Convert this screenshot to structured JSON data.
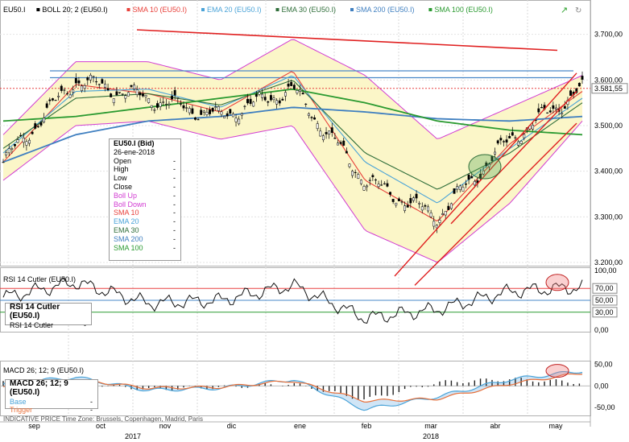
{
  "legend": [
    {
      "label": "EU50.I",
      "color": "#000000"
    },
    {
      "label": "BOLL 20; 2 (EU50.I)",
      "color": "#000000"
    },
    {
      "label": "SMA 10 (EU50.I)",
      "color": "#e8403a"
    },
    {
      "label": "EMA 20 (EU50.I)",
      "color": "#4aa3d8"
    },
    {
      "label": "EMA 30 (EU50.I)",
      "color": "#2f6e3a"
    },
    {
      "label": "SMA 200 (EU50.I)",
      "color": "#3f7fc0"
    },
    {
      "label": "SMA 100 (EU50.I)",
      "color": "#2a9a30"
    }
  ],
  "infobox": {
    "title": "EU50.I (Bid)",
    "date": "26-ene-2018",
    "rows": [
      {
        "label": "Open",
        "value": "-",
        "color": "#000000"
      },
      {
        "label": "High",
        "value": "-",
        "color": "#000000"
      },
      {
        "label": "Low",
        "value": "-",
        "color": "#000000"
      },
      {
        "label": "Close",
        "value": "-",
        "color": "#000000"
      },
      {
        "label": "Boll Up",
        "value": "-",
        "color": "#d23cd2"
      },
      {
        "label": "Boll Down",
        "value": "-",
        "color": "#d23cd2"
      },
      {
        "label": "SMA 10",
        "value": "-",
        "color": "#e8403a"
      },
      {
        "label": "EMA 20",
        "value": "-",
        "color": "#4aa3d8"
      },
      {
        "label": "EMA 30",
        "value": "-",
        "color": "#2f6e3a"
      },
      {
        "label": "SMA 200",
        "value": "-",
        "color": "#3f7fc0"
      },
      {
        "label": "SMA 100",
        "value": "-",
        "color": "#2a9a30"
      }
    ]
  },
  "rsi": {
    "legend": "RSI 14 Cutler (EU50.I)",
    "box_title": "RSI 14 Cutler (EU50.I)",
    "box_row_label": "RSI 14 Cutler",
    "box_row_value": "-",
    "ticks": [
      "100,00",
      "70,00",
      "50,00",
      "30,00",
      "0,00"
    ],
    "levels": [
      70,
      50,
      30
    ],
    "level_labels": [
      "70,00",
      "50,00",
      "30,00"
    ]
  },
  "macd": {
    "legend": "MACD 26; 12; 9 (EU50.I)",
    "box_title": "MACD 26; 12; 9 (EU50.I)",
    "rows": [
      {
        "label": "Base",
        "value": "-",
        "color": "#4aa3d8"
      },
      {
        "label": "Trigger",
        "value": "-",
        "color": "#e8703a"
      }
    ],
    "ticks": [
      "50,00",
      "0,00",
      "-50,00"
    ]
  },
  "footer": "INDICATIVE PRICE   Time Zone: Brussels, Copenhagen, Madrid, Paris",
  "price_axis": {
    "ticks": [
      "3.700,00",
      "3.600,00",
      "3.500,00",
      "3.400,00",
      "3.300,00",
      "3.200,00"
    ],
    "current": "3.581,55"
  },
  "x_axis": {
    "months": [
      "sep",
      "oct",
      "nov",
      "dic",
      "ene",
      "feb",
      "mar",
      "abr",
      "may"
    ],
    "years": [
      "2017",
      "2018"
    ]
  },
  "chart_data": [
    {
      "type": "line",
      "title": "",
      "subtitle": "EU50.I daily candlesticks with Bollinger (20;2), SMA 10, EMA 20, EMA 30, SMA 200, SMA 100",
      "xlabel": "",
      "ylabel": "",
      "ylim": [
        3200,
        3740
      ],
      "categories": [
        "sep 2017",
        "oct 2017",
        "nov 2017",
        "dic 2017",
        "ene 2018",
        "feb 2018",
        "mar 2018",
        "abr 2018",
        "may 2018"
      ],
      "series": [
        {
          "name": "EU50.I",
          "values": [
            3420,
            3600,
            3560,
            3520,
            3580,
            3380,
            3300,
            3470,
            3580
          ]
        },
        {
          "name": "SMA 10 (EU50.I)",
          "values": [
            3420,
            3590,
            3570,
            3530,
            3620,
            3380,
            3290,
            3460,
            3575
          ]
        },
        {
          "name": "EMA 20 (EU50.I)",
          "values": [
            3440,
            3575,
            3580,
            3540,
            3610,
            3420,
            3330,
            3450,
            3560
          ]
        },
        {
          "name": "EMA 30 (EU50.I)",
          "values": [
            3450,
            3560,
            3570,
            3545,
            3600,
            3440,
            3360,
            3440,
            3550
          ]
        },
        {
          "name": "SMA 200 (EU50.I)",
          "values": [
            3420,
            3480,
            3510,
            3520,
            3540,
            3530,
            3515,
            3510,
            3520
          ]
        },
        {
          "name": "SMA 100 (EU50.I)",
          "values": [
            3510,
            3520,
            3540,
            3560,
            3580,
            3550,
            3510,
            3490,
            3480
          ]
        },
        {
          "name": "Boll Up",
          "values": [
            3480,
            3640,
            3640,
            3600,
            3690,
            3610,
            3470,
            3540,
            3610
          ]
        },
        {
          "name": "Boll Down",
          "values": [
            3380,
            3500,
            3510,
            3470,
            3500,
            3270,
            3200,
            3330,
            3510
          ]
        }
      ],
      "current_value": 3581.55,
      "annotations": [
        "horizontal levels ~3.620 and ~3.605",
        "descending trendline from ~3.710 (nov) to ~3.665 (may)",
        "rising channel from mar-2018 lows",
        "ellipse around early-apr cross"
      ]
    },
    {
      "type": "line",
      "title": "RSI 14 Cutler (EU50.I)",
      "ylim": [
        0,
        100
      ],
      "categories": [
        "sep 2017",
        "oct 2017",
        "nov 2017",
        "dic 2017",
        "ene 2018",
        "feb 2018",
        "mar 2018",
        "abr 2018",
        "may 2018"
      ],
      "series": [
        {
          "name": "RSI 14 Cutler",
          "values": [
            55,
            80,
            45,
            50,
            75,
            20,
            35,
            65,
            72
          ]
        }
      ]
    },
    {
      "type": "bar",
      "title": "MACD 26; 12; 9 (EU50.I)",
      "ylim": [
        -65,
        55
      ],
      "categories": [
        "sep 2017",
        "oct 2017",
        "nov 2017",
        "dic 2017",
        "ene 2018",
        "feb 2018",
        "mar 2018",
        "abr 2018",
        "may 2018"
      ],
      "series": [
        {
          "name": "Base",
          "values": [
            5,
            20,
            -10,
            -5,
            15,
            -55,
            -25,
            15,
            35
          ]
        },
        {
          "name": "Trigger",
          "values": [
            0,
            15,
            -5,
            -3,
            12,
            -35,
            -30,
            5,
            30
          ]
        }
      ]
    }
  ]
}
